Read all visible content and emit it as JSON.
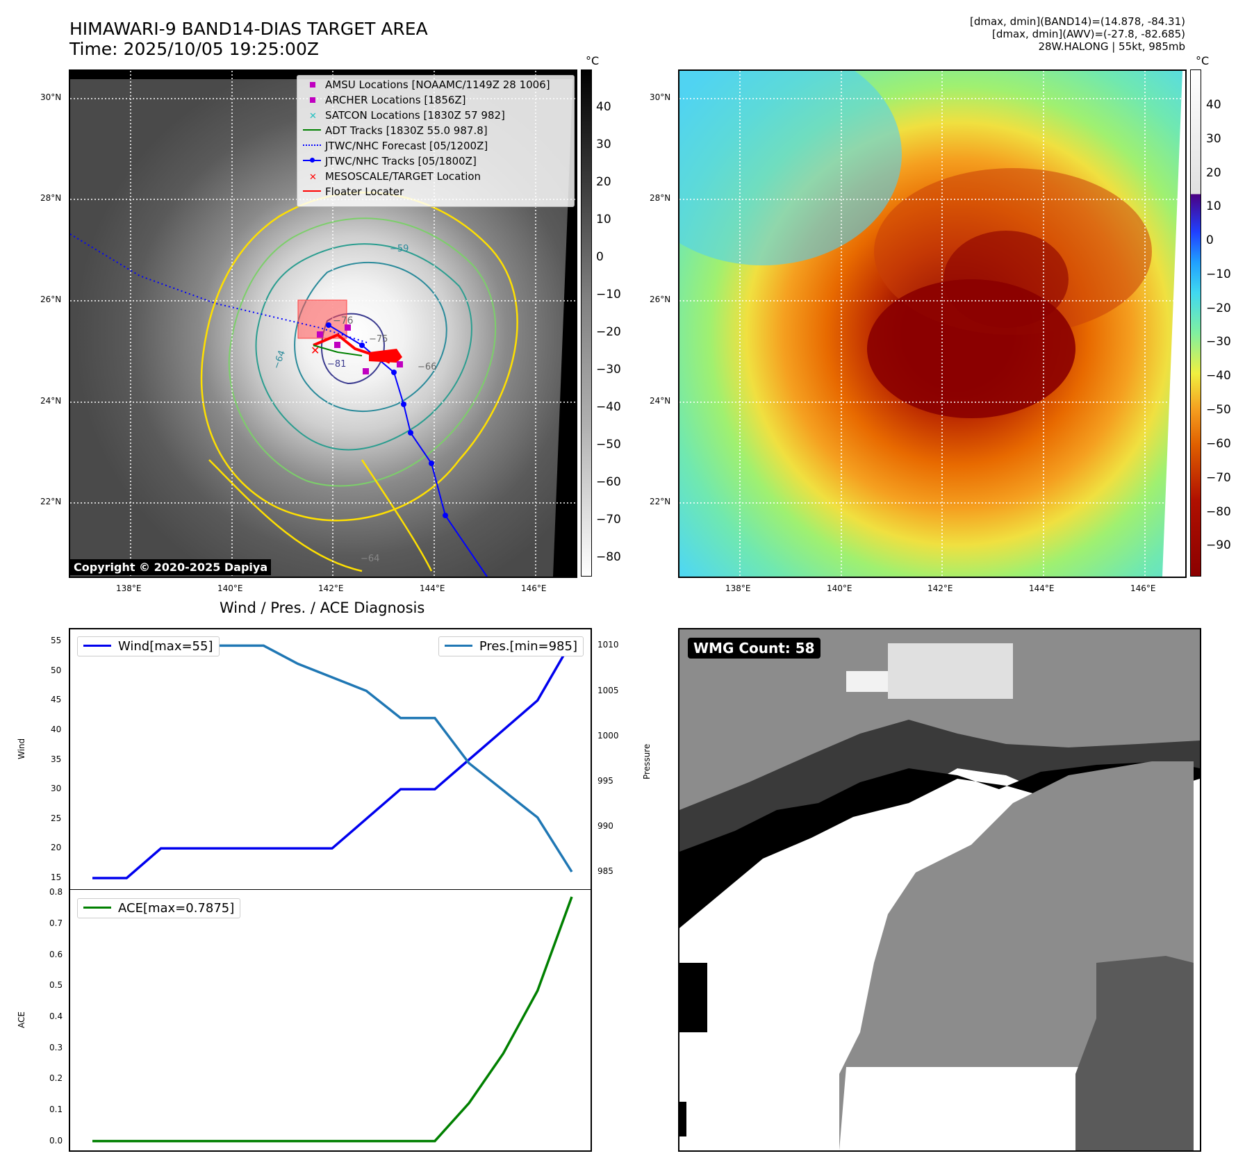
{
  "header": {
    "title_line1": "HIMAWARI-9 BAND14-DIAS TARGET AREA",
    "title_line2": "Time: 2025/10/05 19:25:00Z",
    "info_line1": "[dmax, dmin](BAND14)=(14.878, -84.31)",
    "info_line2": "[dmax, dmin](AWV)=(-27.8, -82.685)",
    "info_line3": "28W.HALONG | 55kt, 985mb"
  },
  "map_left": {
    "lat_labels": [
      "30°N",
      "28°N",
      "26°N",
      "24°N",
      "22°N"
    ],
    "lon_labels": [
      "138°E",
      "140°E",
      "142°E",
      "144°E",
      "146°E"
    ],
    "colorbar_unit": "°C",
    "colorbar_ticks": [
      "40",
      "30",
      "20",
      "10",
      "0",
      "−10",
      "−20",
      "−30",
      "−40",
      "−50",
      "−60",
      "−70",
      "−80"
    ],
    "contour_labels": [
      "−76",
      "−64",
      "−81",
      "−75",
      "−59",
      "−66",
      "−64"
    ],
    "copyright": "Copyright © 2020-2025 Dapiya",
    "legend": [
      {
        "label": "AMSU Locations [NOAAMC/1149Z 28 1006]",
        "color": "#c000c0"
      },
      {
        "label": "ARCHER Locations [1856Z]",
        "color": "#c000c0"
      },
      {
        "label": "SATCON Locations [1830Z 57 982]",
        "color": "#20c0c0"
      },
      {
        "label": "ADT Tracks [1830Z 55.0 987.8]",
        "color": "#008000"
      },
      {
        "label": "JTWC/NHC Forecast [05/1200Z]",
        "color": "#0000ff"
      },
      {
        "label": "JTWC/NHC Tracks [05/1800Z]",
        "color": "#0000ff"
      },
      {
        "label": "MESOSCALE/TARGET Location",
        "color": "#ff0000"
      },
      {
        "label": "Floater Locater",
        "color": "#ff0000"
      }
    ]
  },
  "map_right": {
    "lat_labels": [
      "30°N",
      "28°N",
      "26°N",
      "24°N",
      "22°N"
    ],
    "lon_labels": [
      "138°E",
      "140°E",
      "142°E",
      "144°E",
      "146°E"
    ],
    "colorbar_unit": "°C",
    "colorbar_ticks": [
      "40",
      "30",
      "20",
      "10",
      "0",
      "−10",
      "−20",
      "−30",
      "−40",
      "−50",
      "−60",
      "−70",
      "−80",
      "−90"
    ]
  },
  "wmg": {
    "label": "WMG Count: 58"
  },
  "chart_data": [
    {
      "type": "line",
      "title": "Wind / Pres. / ACE Diagnosis",
      "ylabel": "Wind",
      "y2label": "Pressure",
      "ylim": [
        13.0,
        57.0
      ],
      "y2lim": [
        983.0,
        1011.8
      ],
      "y_ticks": [
        15,
        20,
        25,
        30,
        35,
        40,
        45,
        50,
        55
      ],
      "y2_ticks": [
        985,
        990,
        995,
        1000,
        1005,
        1010
      ],
      "series": [
        {
          "name": "Wind[max=55]",
          "color": "#0000ee",
          "values": [
            15,
            15,
            20,
            20,
            20,
            20,
            20,
            20,
            25,
            30,
            30,
            35,
            40,
            45,
            55
          ]
        },
        {
          "name": "Pres.[min=985]",
          "color": "#1f77b4",
          "values": [
            1009,
            1009,
            1009,
            1010,
            1010,
            1010,
            1008,
            1006.5,
            1005,
            1002,
            1002,
            997,
            994,
            991,
            985
          ]
        }
      ]
    },
    {
      "type": "line",
      "ylabel": "ACE",
      "ylim": [
        -0.03,
        0.81
      ],
      "y_ticks": [
        "0.0",
        "0.1",
        "0.2",
        "0.3",
        "0.4",
        "0.5",
        "0.6",
        "0.7",
        "0.8"
      ],
      "series": [
        {
          "name": "ACE[max=0.7875]",
          "color": "#008000",
          "values": [
            0,
            0,
            0,
            0,
            0,
            0,
            0,
            0,
            0,
            0,
            0,
            0.1225,
            0.2825,
            0.485,
            0.7875
          ]
        }
      ]
    }
  ]
}
